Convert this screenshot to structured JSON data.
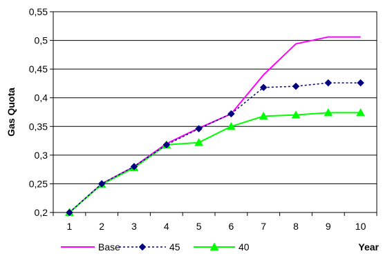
{
  "chart_data": {
    "type": "line",
    "ylabel": "Gas Quota",
    "xlabel": "Year",
    "ylim": [
      0.2,
      0.55
    ],
    "y_ticks": [
      "0,2",
      "0,25",
      "0,3",
      "0,35",
      "0,4",
      "0,45",
      "0,5",
      "0,55"
    ],
    "y_tick_values": [
      0.2,
      0.25,
      0.3,
      0.35,
      0.4,
      0.45,
      0.5,
      0.55
    ],
    "categories": [
      "1",
      "2",
      "3",
      "4",
      "5",
      "6",
      "7",
      "8",
      "9",
      "10"
    ],
    "grid": true,
    "legend_position": "bottom",
    "series": [
      {
        "name": "Base",
        "color": "#FF00FF",
        "style": "solid",
        "marker": "none",
        "values": [
          0.2,
          0.25,
          0.28,
          0.32,
          0.347,
          0.372,
          0.44,
          0.494,
          0.506,
          0.506
        ]
      },
      {
        "name": "45",
        "color": "#000080",
        "style": "dotted",
        "marker": "diamond",
        "values": [
          0.2,
          0.25,
          0.28,
          0.318,
          0.346,
          0.372,
          0.418,
          0.42,
          0.426,
          0.426
        ]
      },
      {
        "name": "40",
        "color": "#00FF00",
        "style": "solid",
        "marker": "triangle",
        "values": [
          0.2,
          0.249,
          0.278,
          0.318,
          0.322,
          0.35,
          0.368,
          0.37,
          0.374,
          0.374
        ]
      }
    ]
  }
}
